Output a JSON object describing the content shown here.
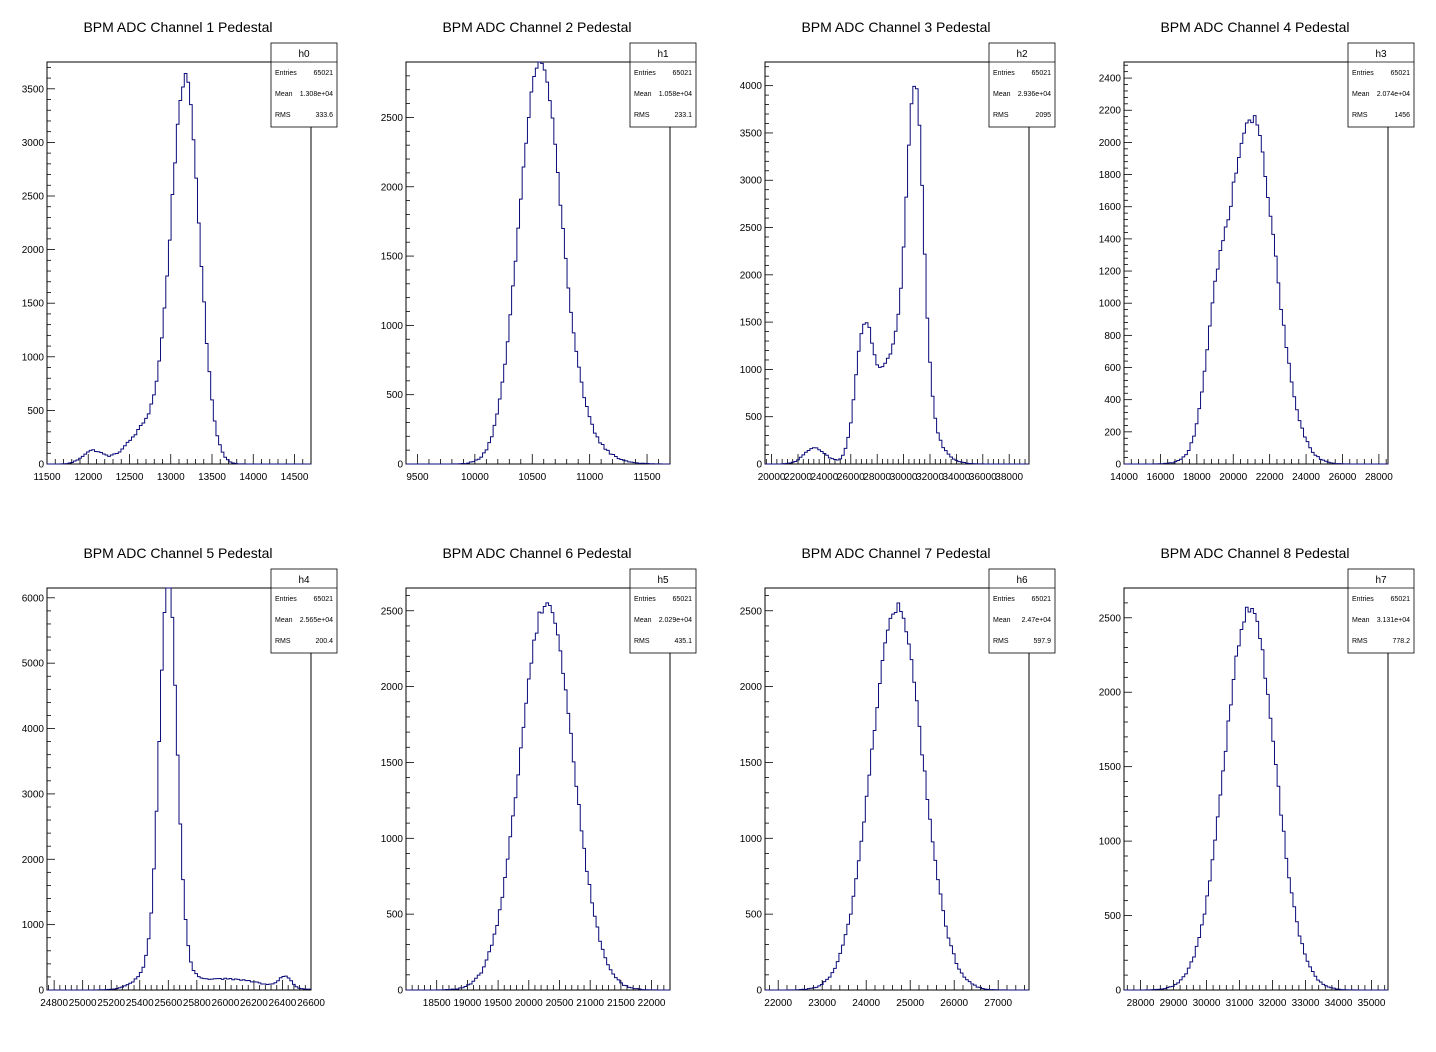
{
  "chart_data": [
    {
      "type": "histogram",
      "title": "BPM ADC Channel 1 Pedestal",
      "stats": {
        "name": "h0",
        "rows": [
          [
            "Entries",
            "65021"
          ],
          [
            "Mean",
            "1.308e+04"
          ],
          [
            "RMS",
            "333.6"
          ]
        ]
      },
      "xlim": [
        11500,
        14700
      ],
      "ylim": [
        0,
        3750
      ],
      "xticks": [
        11500,
        12000,
        12500,
        13000,
        13500,
        14000,
        14500
      ],
      "yticks": [
        0,
        500,
        1000,
        1500,
        2000,
        2500,
        3000,
        3500
      ],
      "bin_width": 32,
      "peaks": [
        {
          "mu": 13180,
          "sigma": 170,
          "amp": 3480
        },
        {
          "mu": 12780,
          "sigma": 260,
          "amp": 380
        },
        {
          "mu": 12050,
          "sigma": 120,
          "amp": 120
        }
      ],
      "color": "#0b0b7a"
    },
    {
      "type": "histogram",
      "title": "BPM ADC Channel 2 Pedestal",
      "stats": {
        "name": "h1",
        "rows": [
          [
            "Entries",
            "65021"
          ],
          [
            "Mean",
            "1.058e+04"
          ],
          [
            "RMS",
            "233.1"
          ]
        ]
      },
      "xlim": [
        9400,
        11700
      ],
      "ylim": [
        0,
        2900
      ],
      "xticks": [
        9500,
        10000,
        10500,
        11000,
        11500
      ],
      "yticks": [
        0,
        500,
        1000,
        1500,
        2000,
        2500
      ],
      "bin_width": 23,
      "peaks": [
        {
          "mu": 10560,
          "sigma": 180,
          "amp": 2740
        },
        {
          "mu": 10800,
          "sigma": 230,
          "amp": 280
        }
      ],
      "color": "#0b0b7a"
    },
    {
      "type": "histogram",
      "title": "BPM ADC Channel 3 Pedestal",
      "stats": {
        "name": "h2",
        "rows": [
          [
            "Entries",
            "65021"
          ],
          [
            "Mean",
            "2.936e+04"
          ],
          [
            "RMS",
            "2095"
          ]
        ]
      },
      "xlim": [
        19500,
        39500
      ],
      "ylim": [
        0,
        4250
      ],
      "xticks": [
        20000,
        22000,
        24000,
        26000,
        28000,
        30000,
        32000,
        34000,
        36000,
        38000
      ],
      "yticks": [
        0,
        500,
        1000,
        1500,
        2000,
        2500,
        3000,
        3500,
        4000
      ],
      "bin_width": 200,
      "peaks": [
        {
          "mu": 30900,
          "sigma": 600,
          "amp": 3000
        },
        {
          "mu": 29800,
          "sigma": 1600,
          "amp": 1300
        },
        {
          "mu": 27000,
          "sigma": 650,
          "amp": 1200
        },
        {
          "mu": 23300,
          "sigma": 800,
          "amp": 170
        }
      ],
      "color": "#0b0b7a"
    },
    {
      "type": "histogram",
      "title": "BPM ADC Channel 4 Pedestal",
      "stats": {
        "name": "h3",
        "rows": [
          [
            "Entries",
            "65021"
          ],
          [
            "Mean",
            "2.074e+04"
          ],
          [
            "RMS",
            "1456"
          ]
        ]
      },
      "xlim": [
        14000,
        28500
      ],
      "ylim": [
        0,
        2500
      ],
      "xticks": [
        14000,
        16000,
        18000,
        20000,
        22000,
        24000,
        26000,
        28000
      ],
      "yticks": [
        0,
        200,
        400,
        600,
        800,
        1000,
        1200,
        1400,
        1600,
        1800,
        2000,
        2200,
        2400
      ],
      "bin_width": 145,
      "peaks": [
        {
          "mu": 21000,
          "sigma": 1300,
          "amp": 2150
        },
        {
          "mu": 19000,
          "sigma": 600,
          "amp": 450
        }
      ],
      "color": "#0b0b7a"
    },
    {
      "type": "histogram",
      "title": "BPM ADC Channel 5 Pedestal",
      "stats": {
        "name": "h4",
        "rows": [
          [
            "Entries",
            "65021"
          ],
          [
            "Mean",
            "2.565e+04"
          ],
          [
            "RMS",
            "200.4"
          ]
        ]
      },
      "xlim": [
        24750,
        26600
      ],
      "ylim": [
        0,
        6150
      ],
      "xticks": [
        24800,
        25000,
        25200,
        25400,
        25600,
        25800,
        26000,
        26200,
        26400,
        26600
      ],
      "yticks": [
        0,
        1000,
        2000,
        3000,
        4000,
        5000,
        6000
      ],
      "bin_width": 18.5,
      "peaks": [
        {
          "mu": 25600,
          "sigma": 60,
          "amp": 5850
        },
        {
          "mu": 25560,
          "sigma": 130,
          "amp": 450
        },
        {
          "mu": 26000,
          "sigma": 250,
          "amp": 170
        },
        {
          "mu": 26420,
          "sigma": 40,
          "amp": 180
        }
      ],
      "color": "#0b0b7a"
    },
    {
      "type": "histogram",
      "title": "BPM ADC Channel 6 Pedestal",
      "stats": {
        "name": "h5",
        "rows": [
          [
            "Entries",
            "65021"
          ],
          [
            "Mean",
            "2.029e+04"
          ],
          [
            "RMS",
            "435.1"
          ]
        ]
      },
      "xlim": [
        18000,
        22300
      ],
      "ylim": [
        0,
        2650
      ],
      "xticks": [
        18500,
        19000,
        19500,
        20000,
        20500,
        21000,
        21500,
        22000
      ],
      "yticks": [
        0,
        500,
        1000,
        1500,
        2000,
        2500
      ],
      "bin_width": 43,
      "peaks": [
        {
          "mu": 20290,
          "sigma": 430,
          "amp": 2560
        }
      ],
      "color": "#0b0b7a"
    },
    {
      "type": "histogram",
      "title": "BPM ADC Channel 7 Pedestal",
      "stats": {
        "name": "h6",
        "rows": [
          [
            "Entries",
            "65021"
          ],
          [
            "Mean",
            "2.47e+04"
          ],
          [
            "RMS",
            "597.9"
          ]
        ]
      },
      "xlim": [
        21700,
        27700
      ],
      "ylim": [
        0,
        2650
      ],
      "xticks": [
        22000,
        23000,
        24000,
        25000,
        26000,
        27000
      ],
      "yticks": [
        0,
        500,
        1000,
        1500,
        2000,
        2500
      ],
      "bin_width": 60,
      "peaks": [
        {
          "mu": 24700,
          "sigma": 590,
          "amp": 2520
        }
      ],
      "color": "#0b0b7a"
    },
    {
      "type": "histogram",
      "title": "BPM ADC Channel 8 Pedestal",
      "stats": {
        "name": "h7",
        "rows": [
          [
            "Entries",
            "65021"
          ],
          [
            "Mean",
            "3.131e+04"
          ],
          [
            "RMS",
            "778.2"
          ]
        ]
      },
      "xlim": [
        27500,
        35500
      ],
      "ylim": [
        0,
        2700
      ],
      "xticks": [
        28000,
        29000,
        30000,
        31000,
        32000,
        33000,
        34000,
        35000
      ],
      "yticks": [
        0,
        500,
        1000,
        1500,
        2000,
        2500
      ],
      "bin_width": 80,
      "peaks": [
        {
          "mu": 31310,
          "sigma": 770,
          "amp": 2560
        }
      ],
      "color": "#0b0b7a"
    }
  ]
}
